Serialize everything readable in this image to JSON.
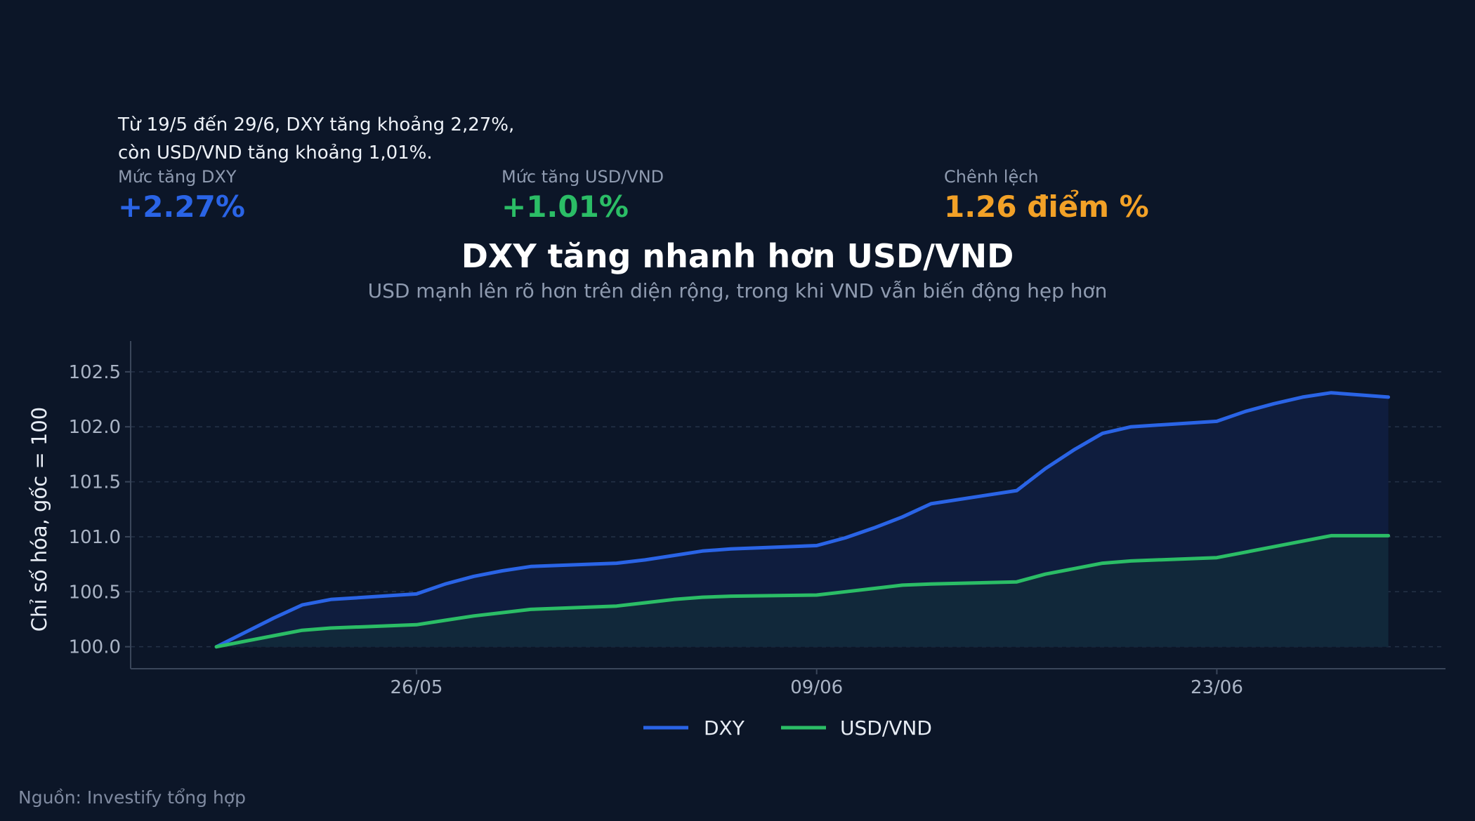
{
  "note": {
    "line1": "Từ 19/5 đến 29/6, DXY tăng khoảng 2,27%,",
    "line2": "còn USD/VND tăng khoảng 1,01%."
  },
  "kpis": [
    {
      "label": "Mức tăng DXY",
      "value": "+2.27%",
      "color": "#2a64e6"
    },
    {
      "label": "Mức tăng USD/VND",
      "value": "+1.01%",
      "color": "#2bbd66"
    },
    {
      "label": "Chênh lệch",
      "value": "1.26 điểm %",
      "color": "#f2a127"
    }
  ],
  "source": "Nguồn: Investify tổng hợp",
  "chart_data": {
    "type": "area",
    "title": "DXY tăng nhanh hơn USD/VND",
    "subtitle": "USD mạnh lên rõ hơn trên diện rộng, trong khi VND vẫn biến động hẹp hơn",
    "xlabel": "",
    "ylabel": "Chỉ số hóa, gốc = 100",
    "x_ticks": [
      "26/05",
      "09/06",
      "23/06"
    ],
    "y_ticks": [
      "100.0",
      "100.5",
      "101.0",
      "101.5",
      "102.0",
      "102.5"
    ],
    "ylim": [
      99.8,
      102.78
    ],
    "xlim": [
      "2025-05-16",
      "2025-07-01"
    ],
    "grid": true,
    "legend": "bottom-center",
    "x": [
      "2025-05-19",
      "2025-05-20",
      "2025-05-21",
      "2025-05-22",
      "2025-05-23",
      "2025-05-26",
      "2025-05-27",
      "2025-05-28",
      "2025-05-29",
      "2025-05-30",
      "2025-06-02",
      "2025-06-03",
      "2025-06-04",
      "2025-06-05",
      "2025-06-06",
      "2025-06-09",
      "2025-06-10",
      "2025-06-11",
      "2025-06-12",
      "2025-06-13",
      "2025-06-16",
      "2025-06-17",
      "2025-06-18",
      "2025-06-19",
      "2025-06-20",
      "2025-06-23",
      "2025-06-24",
      "2025-06-25",
      "2025-06-26",
      "2025-06-27",
      "2025-06-29"
    ],
    "series": [
      {
        "name": "DXY",
        "color": "#2a64e6",
        "values": [
          100.0,
          100.13,
          100.26,
          100.38,
          100.43,
          100.48,
          100.57,
          100.64,
          100.69,
          100.73,
          100.76,
          100.79,
          100.83,
          100.87,
          100.89,
          100.92,
          100.99,
          101.08,
          101.18,
          101.3,
          101.42,
          101.62,
          101.79,
          101.94,
          102.0,
          102.05,
          102.14,
          102.21,
          102.27,
          102.31,
          102.27
        ]
      },
      {
        "name": "USD/VND",
        "color": "#2bbd66",
        "values": [
          100.0,
          100.05,
          100.1,
          100.15,
          100.17,
          100.2,
          100.24,
          100.28,
          100.31,
          100.34,
          100.37,
          100.4,
          100.43,
          100.45,
          100.46,
          100.47,
          100.5,
          100.53,
          100.56,
          100.57,
          100.59,
          100.66,
          100.71,
          100.76,
          100.78,
          100.81,
          100.86,
          100.91,
          100.96,
          101.01,
          101.01
        ]
      }
    ]
  }
}
